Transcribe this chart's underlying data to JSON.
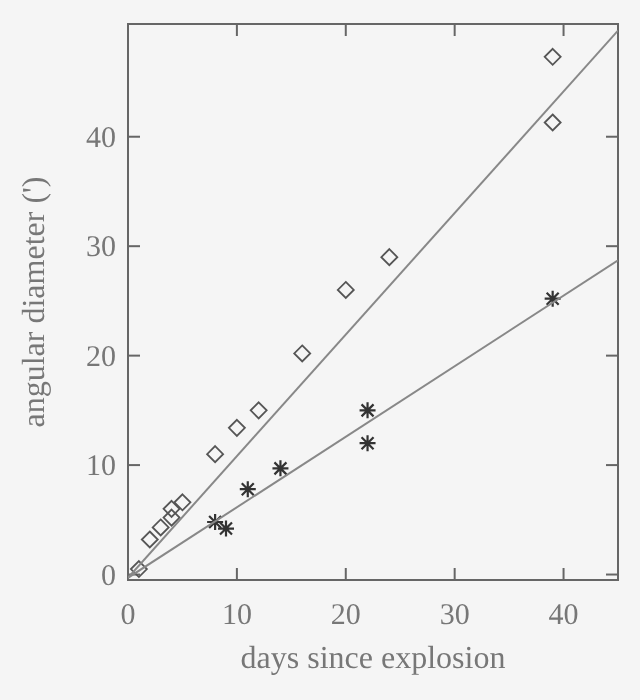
{
  "chart_data": {
    "type": "scatter",
    "xlabel": "days since explosion",
    "ylabel": "angular diameter (')",
    "xlim": [
      0,
      45
    ],
    "ylim": [
      -0.5,
      50.3
    ],
    "xticks": [
      0,
      10,
      20,
      30,
      40
    ],
    "yticks": [
      0,
      10,
      20,
      30,
      40
    ],
    "grid": false,
    "series": [
      {
        "marker": "diamond",
        "color": "#555555",
        "x": [
          1,
          2,
          3,
          4,
          4,
          5,
          8,
          10,
          12,
          16,
          20,
          24,
          39,
          39
        ],
        "values": [
          0.5,
          3.2,
          4.3,
          5.2,
          6,
          6.6,
          11,
          13.4,
          15,
          20.2,
          26,
          29,
          41.3,
          47.3
        ]
      },
      {
        "marker": "cross",
        "color": "#333333",
        "x": [
          8,
          9,
          11,
          14,
          22,
          22,
          39
        ],
        "values": [
          4.8,
          4.2,
          7.8,
          9.7,
          15,
          12,
          25.2
        ]
      },
      {
        "type": "line",
        "marker": "none",
        "color": "#888888",
        "x": [
          0,
          45
        ],
        "values": [
          -0.3,
          49.7
        ]
      },
      {
        "type": "line",
        "marker": "none",
        "color": "#888888",
        "x": [
          0,
          45
        ],
        "values": [
          -0.3,
          28.7
        ]
      }
    ]
  }
}
